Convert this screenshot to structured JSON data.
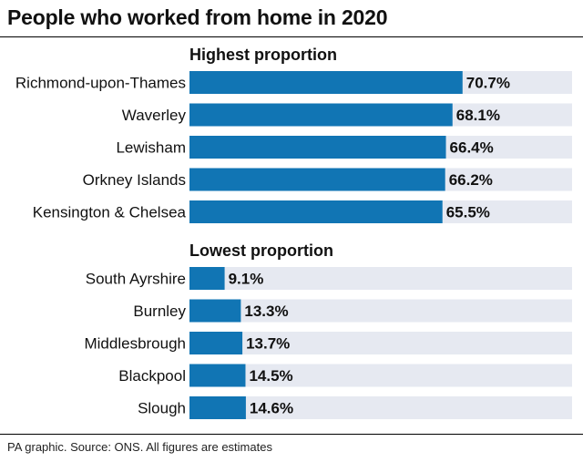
{
  "title": "People who worked from home in 2020",
  "footer": "PA graphic. Source: ONS. All figures are estimates",
  "colors": {
    "bar": "#1175b4",
    "track": "#e6e9f1"
  },
  "chart_data": [
    {
      "type": "bar",
      "orientation": "horizontal",
      "title": "Highest proportion",
      "categories": [
        "Richmond-upon-Thames",
        "Waverley",
        "Lewisham",
        "Orkney Islands",
        "Kensington & Chelsea"
      ],
      "values": [
        70.7,
        68.1,
        66.4,
        66.2,
        65.5
      ],
      "value_labels": [
        "70.7%",
        "68.1%",
        "66.4%",
        "66.2%",
        "65.5%"
      ],
      "xlim": [
        0,
        100
      ],
      "grid": false,
      "legend": "none"
    },
    {
      "type": "bar",
      "orientation": "horizontal",
      "title": "Lowest proportion",
      "categories": [
        "South Ayrshire",
        "Burnley",
        "Middlesbrough",
        "Blackpool",
        "Slough"
      ],
      "values": [
        9.1,
        13.3,
        13.7,
        14.5,
        14.6
      ],
      "value_labels": [
        "9.1%",
        "13.3%",
        "13.7%",
        "14.5%",
        "14.6%"
      ],
      "xlim": [
        0,
        100
      ],
      "grid": false,
      "legend": "none"
    }
  ]
}
